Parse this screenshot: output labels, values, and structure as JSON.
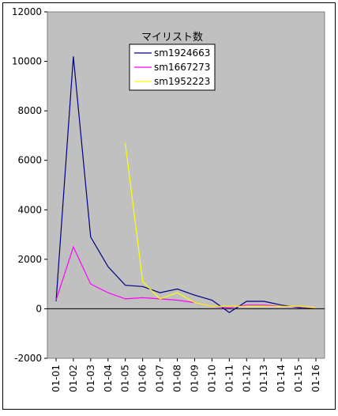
{
  "chart_data": {
    "type": "line",
    "title": "マイリスト数",
    "xlabel": "",
    "ylabel": "",
    "categories": [
      "01-01",
      "01-02",
      "01-03",
      "01-04",
      "01-05",
      "01-06",
      "01-07",
      "01-08",
      "01-09",
      "01-10",
      "01-11",
      "01-12",
      "01-13",
      "01-14",
      "01-15",
      "01-16"
    ],
    "ylim": [
      -2000,
      12000
    ],
    "yticks": [
      -2000,
      0,
      2000,
      4000,
      6000,
      8000,
      10000,
      12000
    ],
    "ytick_labels": [
      "-2000",
      "0",
      "2000",
      "4000",
      "6000",
      "8000",
      "10000",
      "12000"
    ],
    "grid": false,
    "legend_position": "top-center",
    "plot_background": "#c0c0c0",
    "series": [
      {
        "name": "sm1924663",
        "color": "#000080",
        "values": [
          300,
          10200,
          2900,
          1700,
          950,
          900,
          650,
          800,
          550,
          350,
          -150,
          300,
          300,
          150,
          50,
          50
        ]
      },
      {
        "name": "sm1667273",
        "color": "#ff00ff",
        "values": [
          350,
          2500,
          1000,
          650,
          400,
          450,
          400,
          350,
          250,
          100,
          50,
          150,
          150,
          100,
          80,
          50
        ]
      },
      {
        "name": "sm1952223",
        "color": "#ffff00",
        "values": [
          null,
          null,
          null,
          null,
          6700,
          1100,
          400,
          650,
          250,
          100,
          100,
          100,
          100,
          100,
          100,
          50
        ]
      }
    ]
  }
}
